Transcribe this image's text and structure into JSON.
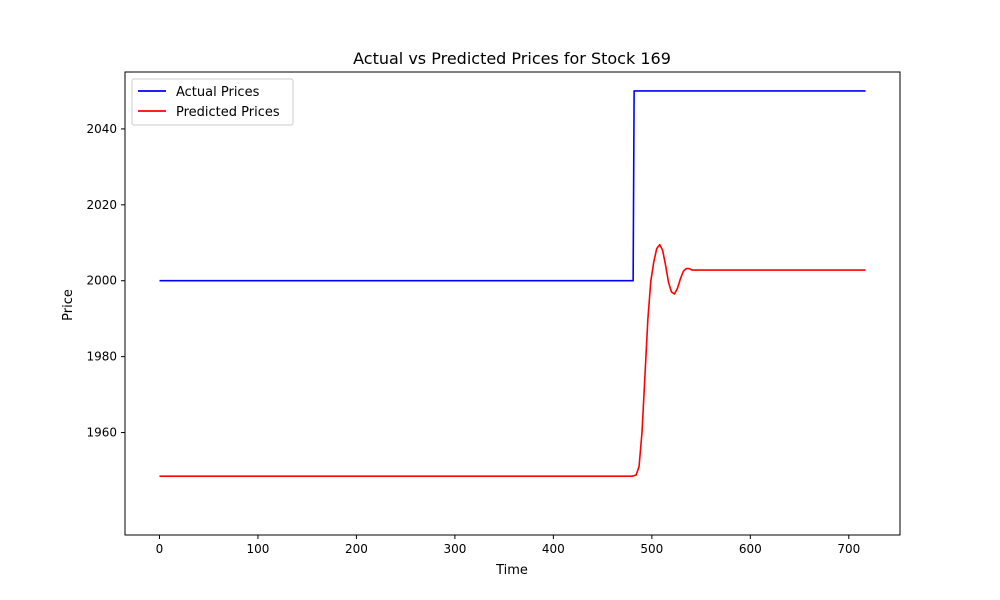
{
  "chart_data": {
    "type": "line",
    "title": "Actual vs Predicted Prices for Stock 169",
    "xlabel": "Time",
    "ylabel": "Price",
    "xlim": [
      -35,
      752
    ],
    "ylim": [
      1933,
      2055
    ],
    "xticks": [
      0,
      100,
      200,
      300,
      400,
      500,
      600,
      700
    ],
    "yticks": [
      1960,
      1980,
      2000,
      2020,
      2040
    ],
    "grid": false,
    "legend_position": "top-left",
    "series": [
      {
        "name": "Actual Prices",
        "color": "#0000ff",
        "points": [
          [
            0,
            2000
          ],
          [
            481,
            2000
          ],
          [
            482,
            2050
          ],
          [
            717,
            2050
          ]
        ]
      },
      {
        "name": "Predicted Prices",
        "color": "#ff0000",
        "points": [
          [
            0,
            1948.5
          ],
          [
            480,
            1948.5
          ],
          [
            484,
            1948.8
          ],
          [
            487,
            1951
          ],
          [
            490,
            1960
          ],
          [
            493,
            1975
          ],
          [
            496,
            1990
          ],
          [
            499,
            2000
          ],
          [
            502,
            2005
          ],
          [
            505,
            2008.5
          ],
          [
            508,
            2009.5
          ],
          [
            511,
            2008
          ],
          [
            514,
            2004
          ],
          [
            517,
            1999.5
          ],
          [
            520,
            1997
          ],
          [
            523,
            1996.5
          ],
          [
            526,
            1998
          ],
          [
            529,
            2000.5
          ],
          [
            532,
            2002.5
          ],
          [
            535,
            2003.2
          ],
          [
            538,
            2003.2
          ],
          [
            541,
            2002.8
          ],
          [
            545,
            2002.8
          ],
          [
            717,
            2002.8
          ]
        ]
      }
    ]
  }
}
